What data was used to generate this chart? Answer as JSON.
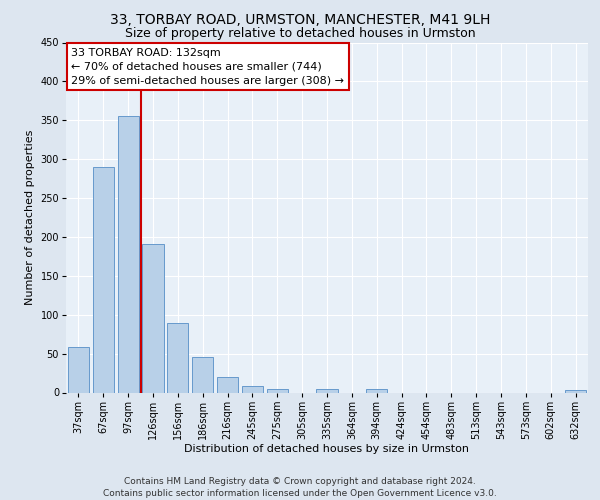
{
  "title1": "33, TORBAY ROAD, URMSTON, MANCHESTER, M41 9LH",
  "title2": "Size of property relative to detached houses in Urmston",
  "xlabel": "Distribution of detached houses by size in Urmston",
  "ylabel": "Number of detached properties",
  "categories": [
    "37sqm",
    "67sqm",
    "97sqm",
    "126sqm",
    "156sqm",
    "186sqm",
    "216sqm",
    "245sqm",
    "275sqm",
    "305sqm",
    "335sqm",
    "364sqm",
    "394sqm",
    "424sqm",
    "454sqm",
    "483sqm",
    "513sqm",
    "543sqm",
    "573sqm",
    "602sqm",
    "632sqm"
  ],
  "values": [
    59,
    290,
    355,
    191,
    90,
    46,
    20,
    8,
    4,
    0,
    4,
    0,
    4,
    0,
    0,
    0,
    0,
    0,
    0,
    0,
    3
  ],
  "bar_color": "#b8d0e8",
  "bar_edge_color": "#6699cc",
  "vline_pos": 2.5,
  "vline_color": "#cc0000",
  "annotation_line1": "33 TORBAY ROAD: 132sqm",
  "annotation_line2": "← 70% of detached houses are smaller (744)",
  "annotation_line3": "29% of semi-detached houses are larger (308) →",
  "annotation_box_color": "#ffffff",
  "annotation_box_edge": "#cc0000",
  "ylim": [
    0,
    450
  ],
  "yticks": [
    0,
    50,
    100,
    150,
    200,
    250,
    300,
    350,
    400,
    450
  ],
  "footer": "Contains HM Land Registry data © Crown copyright and database right 2024.\nContains public sector information licensed under the Open Government Licence v3.0.",
  "bg_color": "#dde6f0",
  "plot_bg_color": "#e8f0f8",
  "title1_fontsize": 10,
  "title2_fontsize": 9,
  "ylabel_fontsize": 8,
  "xlabel_fontsize": 8,
  "tick_fontsize": 7,
  "footer_fontsize": 6.5,
  "annotation_fontsize": 8
}
